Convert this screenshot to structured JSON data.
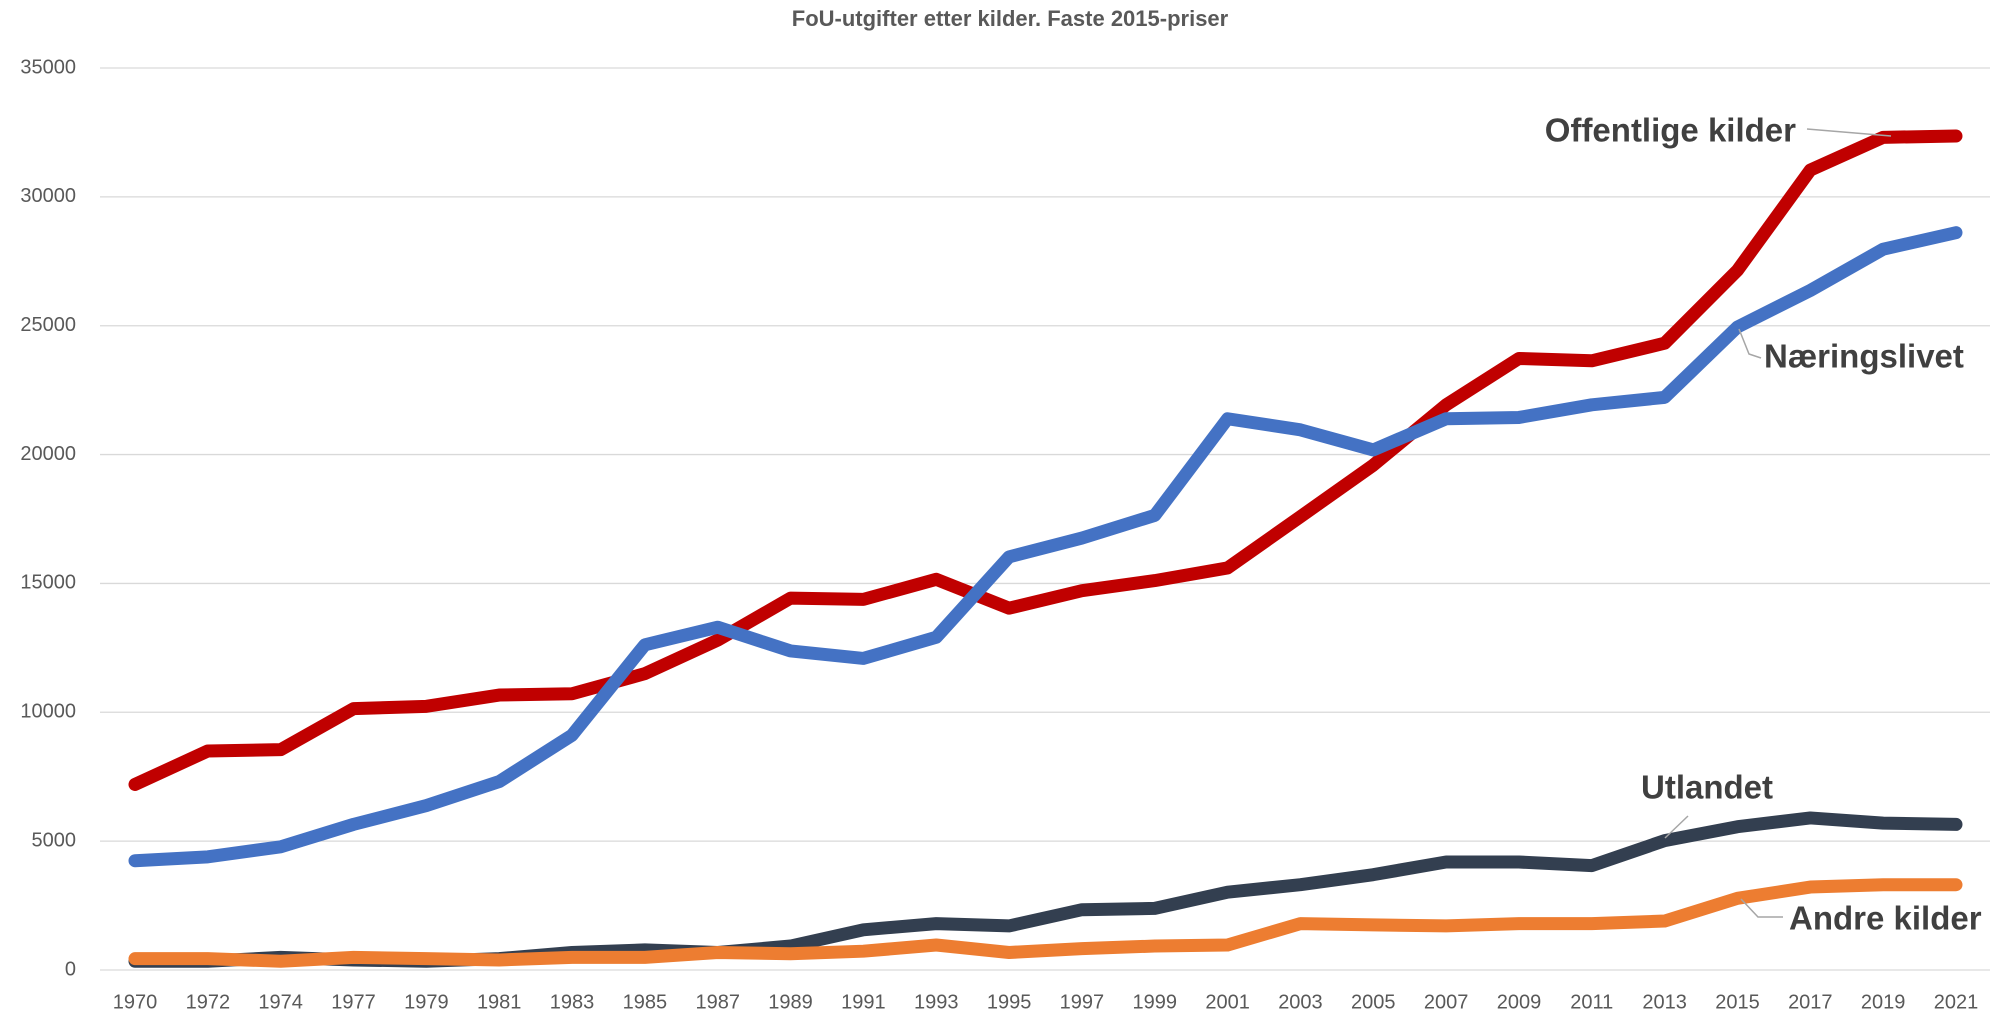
{
  "chart_data": {
    "type": "line",
    "title": "FoU-utgifter etter kilder. Faste 2015-priser",
    "categories": [
      "1970",
      "1972",
      "1974",
      "1977",
      "1979",
      "1981",
      "1983",
      "1985",
      "1987",
      "1989",
      "1991",
      "1993",
      "1995",
      "1997",
      "1999",
      "2001",
      "2003",
      "2005",
      "2007",
      "2009",
      "2011",
      "2013",
      "2015",
      "2017",
      "2019",
      "2021"
    ],
    "series": [
      {
        "name": "Offentlige kilder",
        "color": "#c00000",
        "values": [
          7200,
          8500,
          8550,
          10140,
          10230,
          10670,
          10720,
          11500,
          12800,
          14430,
          14380,
          15160,
          14040,
          14720,
          15110,
          15600,
          17590,
          19590,
          21930,
          23730,
          23640,
          24320,
          27150,
          31040,
          32310,
          32360
        ]
      },
      {
        "name": "Næringslivet",
        "color": "#4472c4",
        "values": [
          4240,
          4390,
          4780,
          5650,
          6380,
          7310,
          9110,
          12620,
          13300,
          12380,
          12090,
          12910,
          16030,
          16760,
          17640,
          21390,
          20960,
          20180,
          21390,
          21440,
          21930,
          22220,
          24950,
          26370,
          27970,
          28610
        ]
      },
      {
        "name": "Utlandet",
        "color": "#333f50",
        "values": [
          340,
          340,
          490,
          390,
          340,
          440,
          680,
          780,
          680,
          930,
          1560,
          1800,
          1710,
          2340,
          2390,
          3020,
          3310,
          3700,
          4190,
          4190,
          4050,
          5020,
          5560,
          5900,
          5700,
          5650
        ]
      },
      {
        "name": "Andre kilder",
        "color": "#ed7d31",
        "values": [
          440,
          440,
          340,
          490,
          440,
          390,
          490,
          490,
          680,
          630,
          730,
          970,
          680,
          830,
          930,
          970,
          1800,
          1750,
          1710,
          1800,
          1800,
          1900,
          2780,
          3220,
          3310,
          3310
        ]
      }
    ],
    "ylim": [
      0,
      35000
    ],
    "yticks": [
      0,
      5000,
      10000,
      15000,
      20000,
      25000,
      30000,
      35000
    ],
    "grid": true
  }
}
